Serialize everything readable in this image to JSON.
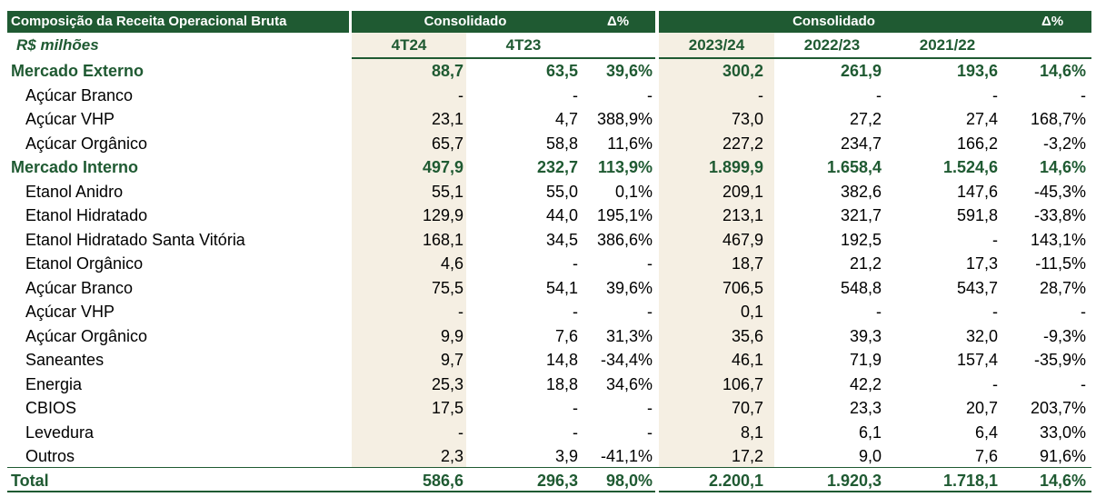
{
  "header": {
    "title": "Composição da Receita Operacional Bruta",
    "group1": "Consolidado",
    "delta1": "Δ%",
    "group2": "Consolidado",
    "delta2": "Δ%"
  },
  "subheader": {
    "unit": "R$ milhões",
    "cols": [
      "4T24",
      "4T23",
      "2023/24",
      "2022/23",
      "2021/22"
    ]
  },
  "rows": [
    {
      "type": "group",
      "label": "Mercado Externo",
      "values": [
        "88,7",
        "63,5",
        "39,6%",
        "300,2",
        "261,9",
        "193,6",
        "14,6%"
      ]
    },
    {
      "type": "item",
      "label": "Açúcar Branco",
      "values": [
        "-",
        "-",
        "-",
        "-",
        "-",
        "-",
        "-"
      ]
    },
    {
      "type": "item",
      "label": "Açúcar VHP",
      "values": [
        "23,1",
        "4,7",
        "388,9%",
        "73,0",
        "27,2",
        "27,4",
        "168,7%"
      ]
    },
    {
      "type": "item",
      "label": "Açúcar Orgânico",
      "values": [
        "65,7",
        "58,8",
        "11,6%",
        "227,2",
        "234,7",
        "166,2",
        "-3,2%"
      ]
    },
    {
      "type": "group",
      "label": "Mercado Interno",
      "values": [
        "497,9",
        "232,7",
        "113,9%",
        "1.899,9",
        "1.658,4",
        "1.524,6",
        "14,6%"
      ]
    },
    {
      "type": "item",
      "label": "Etanol Anidro",
      "values": [
        "55,1",
        "55,0",
        "0,1%",
        "209,1",
        "382,6",
        "147,6",
        "-45,3%"
      ]
    },
    {
      "type": "item",
      "label": "Etanol Hidratado",
      "values": [
        "129,9",
        "44,0",
        "195,1%",
        "213,1",
        "321,7",
        "591,8",
        "-33,8%"
      ]
    },
    {
      "type": "item",
      "label": "Etanol Hidratado Santa Vitória",
      "values": [
        "168,1",
        "34,5",
        "386,6%",
        "467,9",
        "192,5",
        "-",
        "143,1%"
      ]
    },
    {
      "type": "item",
      "label": "Etanol Orgânico",
      "values": [
        "4,6",
        "-",
        "-",
        "18,7",
        "21,2",
        "17,3",
        "-11,5%"
      ]
    },
    {
      "type": "item",
      "label": "Açúcar Branco",
      "values": [
        "75,5",
        "54,1",
        "39,6%",
        "706,5",
        "548,8",
        "543,7",
        "28,7%"
      ]
    },
    {
      "type": "item",
      "label": "Açúcar VHP",
      "values": [
        "-",
        "-",
        "-",
        "0,1",
        "-",
        "-",
        "-"
      ]
    },
    {
      "type": "item",
      "label": "Açúcar Orgânico",
      "values": [
        "9,9",
        "7,6",
        "31,3%",
        "35,6",
        "39,3",
        "32,0",
        "-9,3%"
      ]
    },
    {
      "type": "item",
      "label": "Saneantes",
      "values": [
        "9,7",
        "14,8",
        "-34,4%",
        "46,1",
        "71,9",
        "157,4",
        "-35,9%"
      ]
    },
    {
      "type": "item",
      "label": "Energia",
      "values": [
        "25,3",
        "18,8",
        "34,6%",
        "106,7",
        "42,2",
        "-",
        "-"
      ]
    },
    {
      "type": "item",
      "label": "CBIOS",
      "values": [
        "17,5",
        "-",
        "-",
        "70,7",
        "23,3",
        "20,7",
        "203,7%"
      ]
    },
    {
      "type": "item",
      "label": "Levedura",
      "values": [
        "-",
        "-",
        "-",
        "8,1",
        "6,1",
        "6,4",
        "33,0%"
      ]
    },
    {
      "type": "item",
      "label": "Outros",
      "values": [
        "2,3",
        "3,9",
        "-41,1%",
        "17,2",
        "9,0",
        "7,6",
        "91,6%"
      ]
    },
    {
      "type": "total",
      "label": "Total",
      "values": [
        "586,6",
        "296,3",
        "98,0%",
        "2.200,1",
        "1.920,3",
        "1.718,1",
        "14,6%"
      ]
    }
  ]
}
